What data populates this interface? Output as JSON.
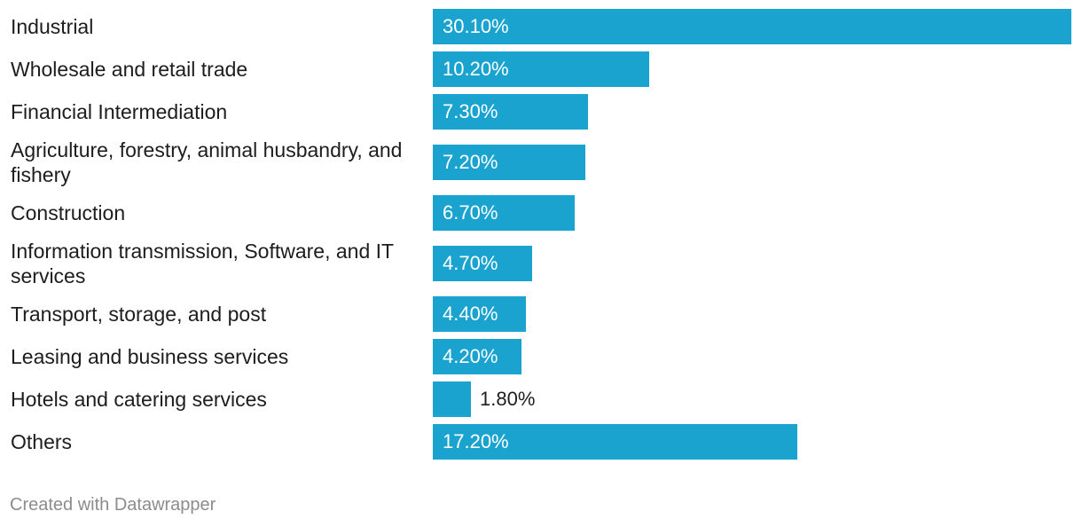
{
  "chart_data": {
    "type": "bar",
    "orientation": "horizontal",
    "categories": [
      "Industrial",
      "Wholesale and retail trade",
      "Financial Intermediation",
      "Agriculture, forestry, animal husbandry, and fishery",
      "Construction",
      "Information transmission, Software, and IT services",
      "Transport, storage, and post",
      "Leasing and business services",
      "Hotels and catering services",
      "Others"
    ],
    "values": [
      30.1,
      10.2,
      7.3,
      7.2,
      6.7,
      4.7,
      4.4,
      4.2,
      1.8,
      17.2
    ],
    "value_labels": [
      "30.10%",
      "10.20%",
      "7.30%",
      "7.20%",
      "6.70%",
      "4.70%",
      "4.40%",
      "4.20%",
      "1.80%",
      "17.20%"
    ],
    "xlim": [
      0,
      30.1
    ],
    "grid": false,
    "colors": {
      "bar": "#1aa3cf"
    }
  },
  "footer": {
    "credit": "Created with Datawrapper"
  }
}
